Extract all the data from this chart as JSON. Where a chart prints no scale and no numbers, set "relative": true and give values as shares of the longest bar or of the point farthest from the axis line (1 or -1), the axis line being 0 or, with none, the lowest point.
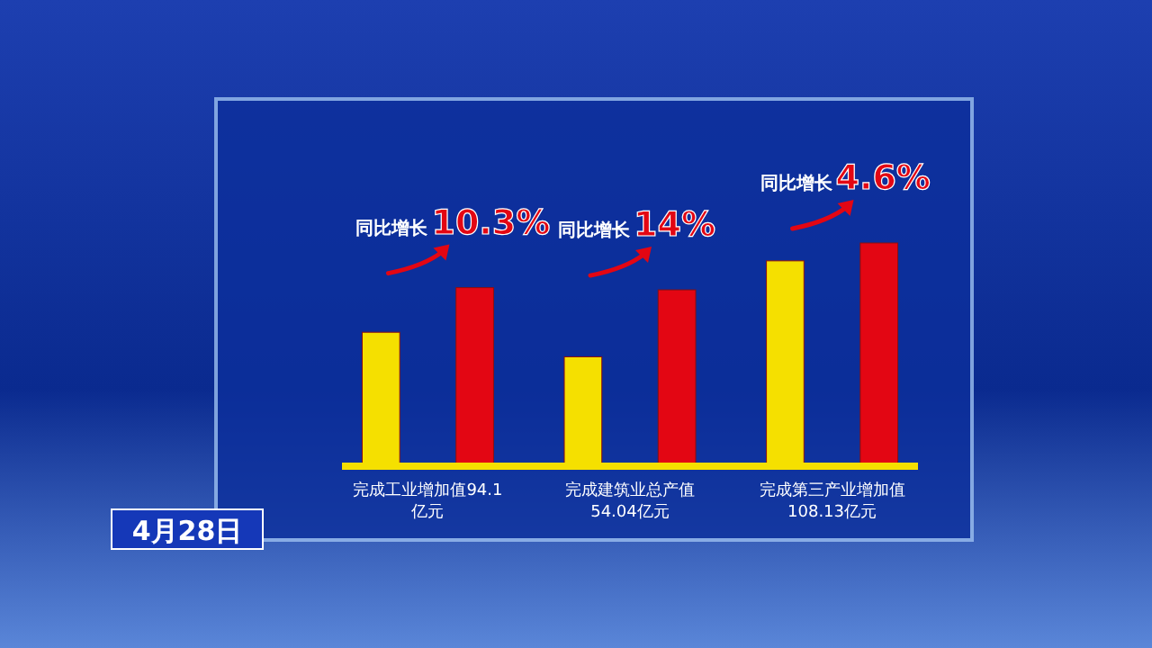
{
  "chart_data": {
    "type": "bar",
    "relative": true,
    "categories": [
      "完成工业增加值94.1亿元",
      "完成建筑业总产值54.04亿元",
      "完成第三产业增加值108.13亿元"
    ],
    "series": [
      {
        "color": "#f5e000",
        "values": [
          0.6,
          0.49,
          0.92
        ]
      },
      {
        "color": "#e30613",
        "values": [
          0.8,
          0.79,
          1
        ]
      }
    ],
    "annotations": [
      "同比增长10.3%",
      "同比增长14%",
      "同比增长4.6%",
      "4月28日"
    ]
  }
}
